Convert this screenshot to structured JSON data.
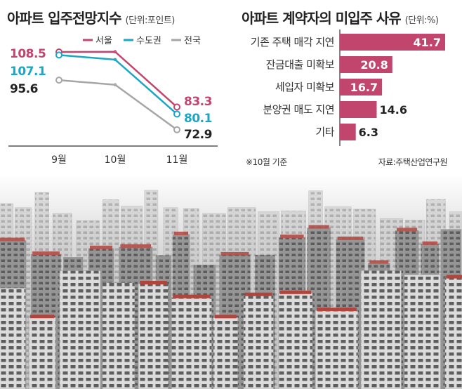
{
  "chart_data": [
    {
      "type": "line",
      "title": "아파트 입주전망지수",
      "unit": "(단위:포인트)",
      "categories": [
        "9월",
        "10월",
        "11월"
      ],
      "series": [
        {
          "name": "서울",
          "color": "#c2456e",
          "values": [
            108.5,
            108.6,
            83.3
          ]
        },
        {
          "name": "수도권",
          "color": "#1aa7c4",
          "values": [
            107.1,
            105.0,
            80.1
          ]
        },
        {
          "name": "전국",
          "color": "#a6a6a6",
          "values": [
            95.6,
            93.5,
            72.9
          ]
        }
      ],
      "labels": {
        "first": [
          {
            "text": "108.5",
            "color": "#c2456e"
          },
          {
            "text": "107.1",
            "color": "#1aa7c4"
          },
          {
            "text": "95.6",
            "color": "#222222"
          }
        ],
        "last": [
          {
            "text": "83.3",
            "color": "#c2456e"
          },
          {
            "text": "80.1",
            "color": "#1aa7c4"
          },
          {
            "text": "72.9",
            "color": "#222222"
          }
        ]
      },
      "ylim": [
        68,
        113
      ],
      "legend": "top-right"
    },
    {
      "type": "bar",
      "orientation": "horizontal",
      "title": "아파트 계약자의 미입주 사유",
      "unit": "(단위:%)",
      "categories": [
        "기존 주택 매각 지연",
        "잔금대출 미확보",
        "세입자 미확보",
        "분양권 매도 지연",
        "기타"
      ],
      "values": [
        41.7,
        20.8,
        16.7,
        14.6,
        6.3
      ],
      "value_labels": [
        "41.7",
        "20.8",
        "16.7",
        "14.6",
        "6.3"
      ],
      "bar_color": "#c2456e",
      "xlim": [
        0,
        41.7
      ]
    }
  ],
  "notes": {
    "footnote": "※10월 기준",
    "source": "자료:주택산업연구원"
  }
}
